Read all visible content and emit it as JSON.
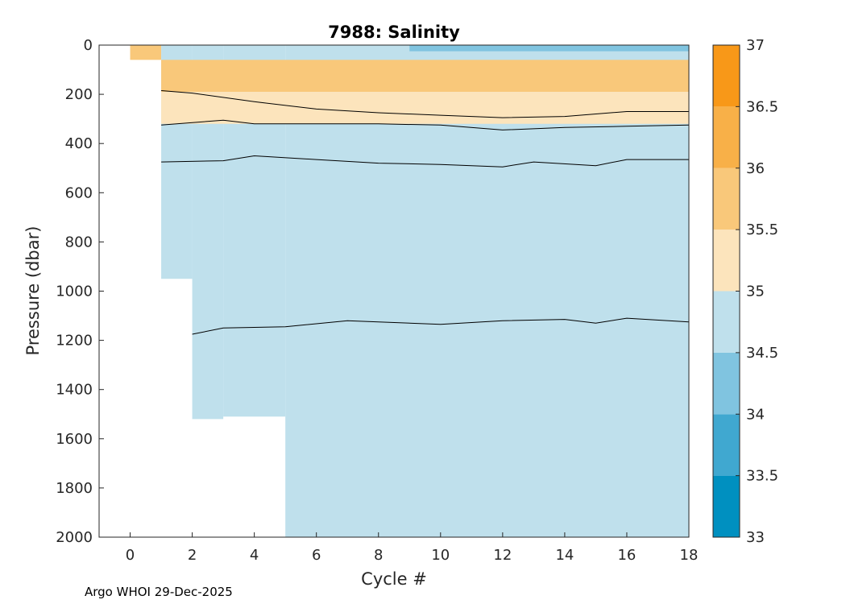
{
  "chart_data": {
    "type": "contour",
    "title": "7988:  Salinity",
    "xlabel": "Cycle #",
    "ylabel": "Pressure (dbar)",
    "xlim": [
      -1,
      18
    ],
    "ylim": [
      0,
      2000
    ],
    "y_reversed": true,
    "x_ticks": [
      0,
      2,
      4,
      6,
      8,
      10,
      12,
      14,
      16,
      18
    ],
    "y_ticks": [
      0,
      200,
      400,
      600,
      800,
      1000,
      1200,
      1400,
      1600,
      1800,
      2000
    ],
    "colorbar": {
      "levels": [
        33,
        33.5,
        34,
        34.5,
        35,
        35.5,
        36,
        36.5,
        37
      ],
      "colors": [
        "#0090C0",
        "#40A8D0",
        "#80C4E0",
        "#BFE0EC",
        "#FCE4BC",
        "#F9C87A",
        "#F8B048",
        "#F89818"
      ]
    },
    "data_coverage": [
      {
        "cycle_start": 0,
        "cycle_end": 1,
        "max_pressure": 60
      },
      {
        "cycle_start": 1,
        "cycle_end": 2,
        "max_pressure": 950
      },
      {
        "cycle_start": 2,
        "cycle_end": 3,
        "max_pressure": 1520
      },
      {
        "cycle_start": 3,
        "cycle_end": 5,
        "max_pressure": 1510
      },
      {
        "cycle_start": 5,
        "cycle_end": 18,
        "max_pressure": 2000
      }
    ],
    "bands": [
      {
        "salinity_range": "35.5-36",
        "top_pressure": 60,
        "bottom_pressure": 190
      },
      {
        "salinity_range": "35-35.5",
        "top_pressure": 190,
        "bottom_pressure": 320
      },
      {
        "salinity_range": "34.5-35",
        "top_pressure": 320,
        "bottom_pressure": 2000
      },
      {
        "salinity_range": "34-34.5",
        "top_pressure": 0,
        "bottom_pressure": 25,
        "cycle_start": 9,
        "cycle_end": 18
      }
    ],
    "contour_lines": [
      {
        "level": "35.5",
        "cycles": [
          1,
          2,
          4,
          6,
          8,
          10,
          12,
          14,
          16,
          18
        ],
        "pressures": [
          185,
          195,
          230,
          260,
          275,
          285,
          295,
          290,
          270,
          270
        ]
      },
      {
        "level": "35",
        "cycles": [
          1,
          3,
          4,
          6,
          8,
          10,
          12,
          14,
          16,
          18
        ],
        "pressures": [
          325,
          305,
          320,
          320,
          320,
          325,
          345,
          335,
          330,
          325
        ]
      },
      {
        "level": "34.8",
        "cycles": [
          1,
          3,
          4,
          6,
          8,
          10,
          12,
          13,
          15,
          16,
          18
        ],
        "pressures": [
          475,
          470,
          450,
          465,
          480,
          485,
          495,
          475,
          490,
          465,
          465
        ]
      },
      {
        "level": "34.6",
        "cycles": [
          2,
          3,
          5,
          7,
          8,
          10,
          12,
          14,
          15,
          16,
          18
        ],
        "pressures": [
          1175,
          1150,
          1145,
          1120,
          1125,
          1135,
          1120,
          1115,
          1130,
          1110,
          1125
        ]
      }
    ],
    "footer": "Argo WHOI 29-Dec-2025"
  }
}
